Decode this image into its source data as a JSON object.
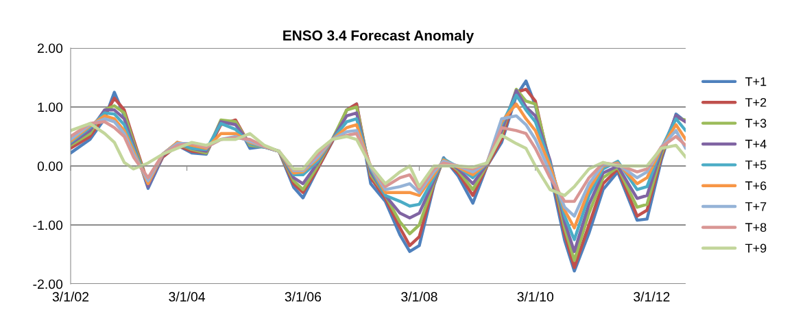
{
  "chart_data": {
    "type": "line",
    "title": "ENSO 3.4 Forecast Anomaly",
    "x": [
      "2002-03",
      "2002-07",
      "2002-10",
      "2002-12",
      "2003-02",
      "2003-04",
      "2003-07",
      "2003-10",
      "2004-01",
      "2004-04",
      "2004-07",
      "2004-10",
      "2005-01",
      "2005-04",
      "2005-07",
      "2005-10",
      "2006-01",
      "2006-03",
      "2006-06",
      "2006-09",
      "2006-12",
      "2007-02",
      "2007-05",
      "2007-08",
      "2007-11",
      "2008-01",
      "2008-03",
      "2008-06",
      "2008-08",
      "2008-11",
      "2009-02",
      "2009-05",
      "2009-08",
      "2009-11",
      "2010-01",
      "2010-03",
      "2010-06",
      "2010-09",
      "2010-11",
      "2011-02",
      "2011-05",
      "2011-08",
      "2011-12",
      "2012-02",
      "2012-05",
      "2012-08",
      "2012-10"
    ],
    "series": [
      {
        "name": "T+1",
        "color": "#4f81bd",
        "values": [
          0.22,
          0.45,
          0.8,
          1.25,
          0.85,
          0.37,
          -0.38,
          0.15,
          0.35,
          0.22,
          0.2,
          0.75,
          0.76,
          0.3,
          0.33,
          0.25,
          -0.36,
          -0.54,
          -0.05,
          0.41,
          0.95,
          1.05,
          -0.3,
          -0.6,
          -1.17,
          -1.45,
          -1.35,
          -0.33,
          0.14,
          -0.17,
          -0.63,
          0.0,
          0.4,
          1.19,
          1.44,
          1.03,
          -0.1,
          -1.26,
          -1.78,
          -1.14,
          -0.4,
          -0.1,
          -0.92,
          -0.9,
          0.1,
          0.88,
          0.75
        ]
      },
      {
        "name": "T+2",
        "color": "#c0504d",
        "values": [
          0.3,
          0.5,
          0.85,
          1.15,
          0.95,
          0.45,
          -0.3,
          0.15,
          0.35,
          0.25,
          0.22,
          0.7,
          0.78,
          0.35,
          0.33,
          0.25,
          -0.3,
          -0.45,
          -0.05,
          0.42,
          0.95,
          1.05,
          -0.2,
          -0.55,
          -1.05,
          -1.35,
          -1.2,
          -0.3,
          0.12,
          -0.12,
          -0.5,
          0.0,
          0.45,
          1.25,
          1.3,
          1.1,
          0.0,
          -1.15,
          -1.72,
          -1.0,
          -0.3,
          -0.05,
          -0.85,
          -0.75,
          0.15,
          0.85,
          0.75
        ]
      },
      {
        "name": "T+3",
        "color": "#9bbb59",
        "values": [
          0.35,
          0.55,
          0.95,
          1.02,
          0.9,
          0.4,
          -0.32,
          0.18,
          0.38,
          0.28,
          0.22,
          0.78,
          0.75,
          0.35,
          0.32,
          0.25,
          -0.25,
          -0.4,
          0.0,
          0.45,
          0.95,
          1.0,
          -0.15,
          -0.5,
          -0.95,
          -1.15,
          -1.0,
          -0.28,
          0.12,
          -0.08,
          -0.4,
          0.02,
          0.55,
          1.3,
          1.1,
          1.05,
          0.05,
          -1.05,
          -1.6,
          -0.8,
          -0.2,
          -0.02,
          -0.7,
          -0.65,
          0.2,
          0.82,
          0.78
        ]
      },
      {
        "name": "T+4",
        "color": "#8064a2",
        "values": [
          0.38,
          0.6,
          0.95,
          0.95,
          0.8,
          0.35,
          -0.35,
          0.18,
          0.38,
          0.3,
          0.25,
          0.75,
          0.7,
          0.38,
          0.32,
          0.25,
          -0.2,
          -0.3,
          0.05,
          0.45,
          0.85,
          0.9,
          -0.1,
          -0.5,
          -0.8,
          -0.88,
          -0.8,
          -0.25,
          0.12,
          -0.05,
          -0.3,
          0.03,
          0.6,
          1.28,
          1.0,
          0.85,
          0.1,
          -0.95,
          -1.45,
          -0.65,
          -0.12,
          0.0,
          -0.55,
          -0.5,
          0.25,
          0.85,
          0.75
        ]
      },
      {
        "name": "T+5",
        "color": "#4bacc6",
        "values": [
          0.4,
          0.65,
          0.9,
          0.88,
          0.7,
          0.3,
          -0.3,
          0.2,
          0.4,
          0.3,
          0.28,
          0.72,
          0.62,
          0.38,
          0.32,
          0.25,
          -0.15,
          -0.15,
          0.08,
          0.45,
          0.75,
          0.8,
          -0.05,
          -0.5,
          -0.6,
          -0.68,
          -0.65,
          -0.2,
          0.12,
          -0.02,
          -0.2,
          0.05,
          0.7,
          1.2,
          0.95,
          0.75,
          0.05,
          -0.85,
          -1.25,
          -0.5,
          -0.05,
          0.08,
          -0.4,
          -0.35,
          0.3,
          0.8,
          0.6
        ]
      },
      {
        "name": "T+6",
        "color": "#f79646",
        "values": [
          0.42,
          0.68,
          0.85,
          0.8,
          0.6,
          0.25,
          -0.3,
          0.2,
          0.4,
          0.35,
          0.3,
          0.55,
          0.55,
          0.4,
          0.33,
          0.25,
          -0.12,
          -0.1,
          0.12,
          0.45,
          0.65,
          0.7,
          -0.02,
          -0.45,
          -0.45,
          -0.45,
          -0.5,
          -0.15,
          0.1,
          -0.02,
          -0.15,
          0.05,
          0.75,
          1.05,
          0.8,
          0.6,
          0.0,
          -0.75,
          -1.05,
          -0.4,
          0.0,
          0.05,
          -0.3,
          -0.2,
          0.3,
          0.7,
          0.45
        ]
      },
      {
        "name": "T+7",
        "color": "#95b3d7",
        "values": [
          0.45,
          0.7,
          0.8,
          0.75,
          0.55,
          0.2,
          -0.25,
          0.2,
          0.38,
          0.38,
          0.32,
          0.45,
          0.5,
          0.42,
          0.33,
          0.25,
          -0.08,
          -0.08,
          0.15,
          0.45,
          0.58,
          0.6,
          -0.02,
          -0.4,
          -0.35,
          -0.3,
          -0.45,
          -0.1,
          0.08,
          0.0,
          -0.1,
          0.05,
          0.8,
          0.85,
          0.7,
          0.45,
          -0.1,
          -0.7,
          -0.85,
          -0.3,
          0.02,
          0.03,
          -0.2,
          -0.1,
          0.32,
          0.6,
          0.3
        ]
      },
      {
        "name": "T+8",
        "color": "#d99694",
        "values": [
          0.5,
          0.72,
          0.75,
          0.65,
          0.5,
          0.15,
          -0.2,
          0.2,
          0.35,
          0.38,
          0.32,
          0.45,
          0.48,
          0.45,
          0.33,
          0.25,
          -0.06,
          -0.06,
          0.2,
          0.45,
          0.52,
          0.55,
          0.0,
          -0.35,
          -0.2,
          -0.15,
          -0.4,
          -0.05,
          0.05,
          0.0,
          -0.05,
          0.05,
          0.65,
          0.6,
          0.55,
          0.3,
          -0.2,
          -0.6,
          -0.6,
          -0.2,
          0.05,
          0.02,
          -0.1,
          -0.05,
          0.32,
          0.5,
          0.35
        ]
      },
      {
        "name": "T+9",
        "color": "#c3d69b",
        "values": [
          0.6,
          0.72,
          0.55,
          0.4,
          0.06,
          -0.05,
          0.05,
          0.2,
          0.3,
          0.4,
          0.35,
          0.45,
          0.45,
          0.55,
          0.35,
          0.25,
          -0.05,
          -0.05,
          0.25,
          0.45,
          0.5,
          0.45,
          0.0,
          -0.3,
          -0.1,
          0.0,
          -0.35,
          0.0,
          0.0,
          0.0,
          -0.02,
          0.05,
          0.52,
          0.38,
          0.3,
          0.0,
          -0.4,
          -0.5,
          -0.35,
          -0.05,
          0.06,
          0.0,
          0.0,
          0.0,
          0.3,
          0.35,
          0.15
        ]
      }
    ],
    "xlim": [
      "2002-03-01",
      "2012-10-01"
    ],
    "xticks": [
      {
        "value": "2002-03-01",
        "label": "3/1/02"
      },
      {
        "value": "2004-03-01",
        "label": "3/1/04"
      },
      {
        "value": "2006-03-01",
        "label": "3/1/06"
      },
      {
        "value": "2008-03-01",
        "label": "3/1/08"
      },
      {
        "value": "2010-03-01",
        "label": "3/1/10"
      },
      {
        "value": "2012-03-01",
        "label": "3/1/12"
      }
    ],
    "ylim": [
      -2,
      2
    ],
    "yticks": [
      {
        "value": -2,
        "label": "-2.00"
      },
      {
        "value": -1,
        "label": "-1.00"
      },
      {
        "value": 0,
        "label": "0.00"
      },
      {
        "value": 1,
        "label": "1.00"
      },
      {
        "value": 2,
        "label": "2.00"
      }
    ],
    "grid": "y",
    "legend": "right",
    "marker": "none",
    "line_style": "solid"
  }
}
